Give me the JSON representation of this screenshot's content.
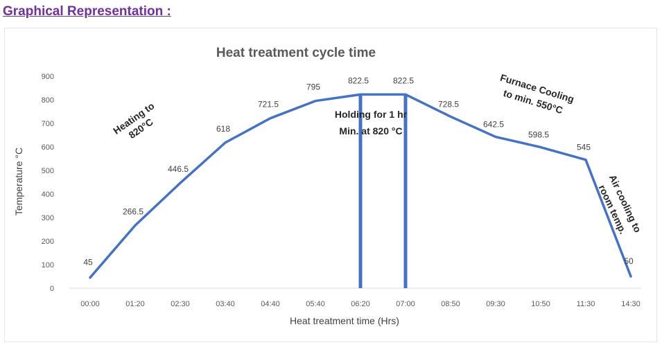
{
  "heading": "Graphical Representation :",
  "chart_data": {
    "type": "line",
    "title": "Heat treatment cycle time",
    "xlabel": "Heat treatment time (Hrs)",
    "ylabel": "Temperature °C",
    "ylim": [
      0,
      900
    ],
    "y_ticks": [
      "0",
      "100",
      "200",
      "300",
      "400",
      "500",
      "600",
      "700",
      "800",
      "900"
    ],
    "categories": [
      "00:00",
      "01:20",
      "02:30",
      "03:40",
      "04:40",
      "05:40",
      "06:20",
      "07:00",
      "08:50",
      "09:30",
      "10:50",
      "11:30",
      "14:30"
    ],
    "values": [
      45,
      266.5,
      446.5,
      618,
      721.5,
      795,
      822.5,
      822.5,
      728.5,
      642.5,
      598.5,
      545,
      50
    ],
    "data_labels": [
      "45",
      "266.5",
      "446.5",
      "618",
      "721.5",
      "795",
      "822.5",
      "822.5",
      "728.5",
      "642.5",
      "598.5",
      "545",
      "50"
    ],
    "grid": false,
    "line_color": "#4472c4",
    "annotations": [
      {
        "lines": [
          "Heating to",
          "820°C"
        ]
      },
      {
        "lines": [
          "Holding for 1 hr",
          "Min. at 820 °C"
        ]
      },
      {
        "lines": [
          "Furnace Cooling",
          "to min. 550°C"
        ]
      },
      {
        "lines": [
          "Air cooling to",
          "room temp."
        ]
      }
    ]
  }
}
